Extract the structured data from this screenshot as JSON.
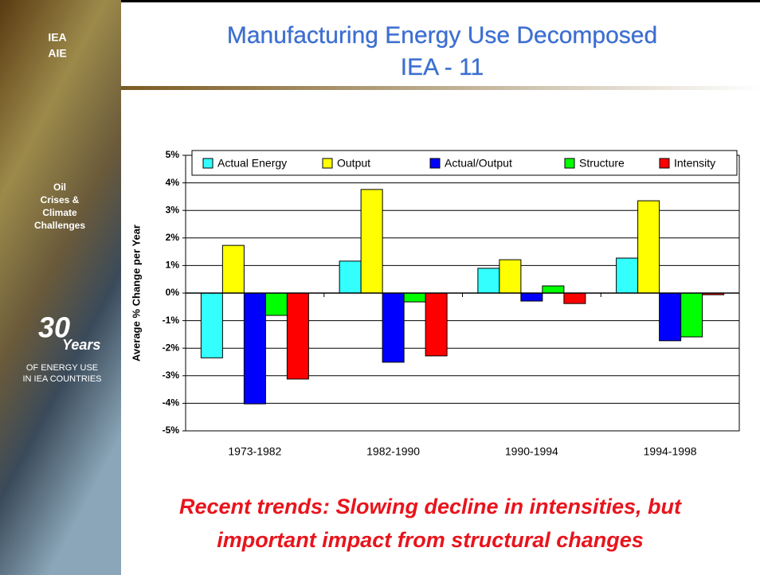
{
  "slide": {
    "title": [
      "Manufacturing Energy Use Decomposed",
      "IEA - 11"
    ],
    "logo": [
      "IEA",
      "AIE"
    ],
    "sidebar_label": [
      "Oil",
      "Crises &",
      "Climate",
      "Challenges"
    ],
    "badge_number": "30",
    "badge_word": "Years",
    "badge_text": [
      "OF ENERGY USE",
      "IN IEA COUNTRIES"
    ],
    "caption": [
      "Recent trends: Slowing decline in intensities, but",
      "important impact from structural changes"
    ]
  },
  "chart_data": {
    "type": "bar",
    "y_label": "Average % Change per Year",
    "categories": [
      "1973-1982",
      "1982-1990",
      "1990-1994",
      "1994-1998"
    ],
    "series": [
      {
        "name": "Actual Energy",
        "color": "#33ffff",
        "values": [
          -2.35,
          1.16,
          0.9,
          1.27
        ]
      },
      {
        "name": "Output",
        "color": "#ffff00",
        "values": [
          1.73,
          3.76,
          1.21,
          3.35
        ]
      },
      {
        "name": "Actual/Output",
        "color": "#0000ff",
        "values": [
          -4.02,
          -2.51,
          -0.29,
          -1.73
        ]
      },
      {
        "name": "Structure",
        "color": "#00ff00",
        "values": [
          -0.81,
          -0.32,
          0.26,
          -1.59
        ]
      },
      {
        "name": "Intensity",
        "color": "#ff0000",
        "values": [
          -3.12,
          -2.28,
          -0.38,
          -0.06
        ]
      }
    ],
    "ylim": [
      -5,
      5
    ],
    "yticks": [
      {
        "value": -5,
        "label": "-5%"
      },
      {
        "value": -4,
        "label": "-4%"
      },
      {
        "value": -3,
        "label": "-3%"
      },
      {
        "value": -2,
        "label": "-2%"
      },
      {
        "value": -1,
        "label": "-1%"
      },
      {
        "value": 0,
        "label": "0%"
      },
      {
        "value": 1,
        "label": "1%"
      },
      {
        "value": 2,
        "label": "2%"
      },
      {
        "value": 3,
        "label": "3%"
      },
      {
        "value": 4,
        "label": "4%"
      },
      {
        "value": 5,
        "label": "5%"
      }
    ],
    "grid": true,
    "legend": "top"
  }
}
